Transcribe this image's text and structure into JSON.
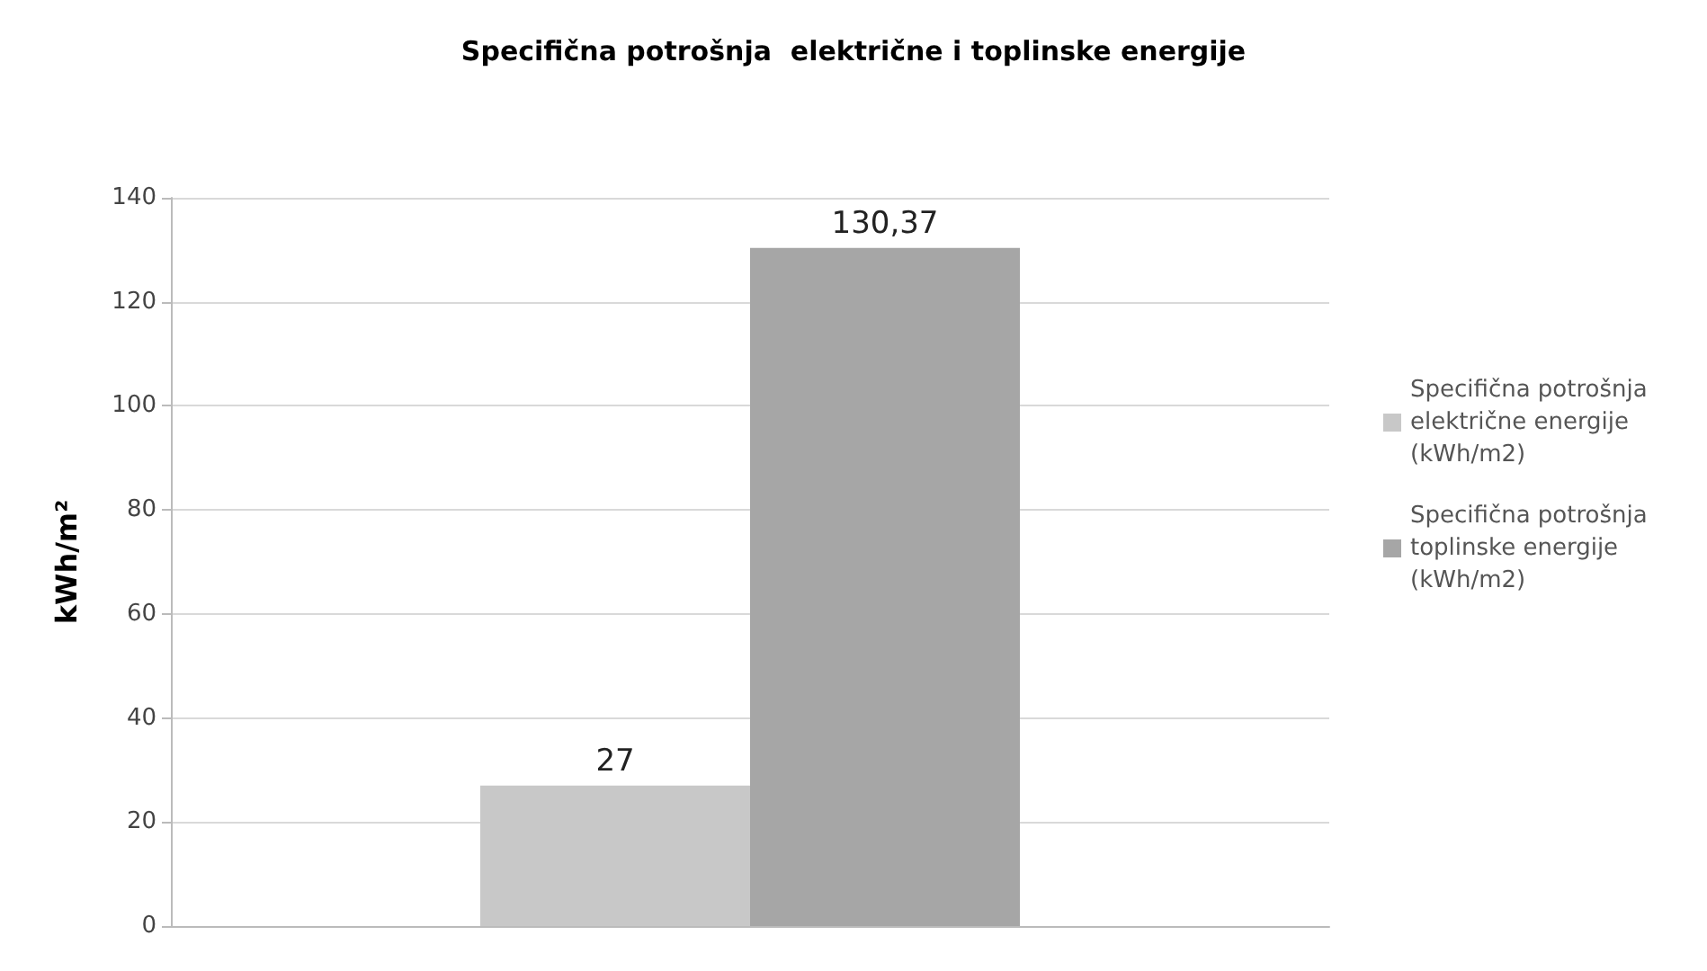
{
  "chart_data": {
    "type": "bar",
    "title": "Specifična potrošnja  električne i toplinske energije",
    "ylabel": "kWh/m²",
    "categories": [
      null
    ],
    "series": [
      {
        "name": "Specifična potrošnja električne energije (kWh/m2)",
        "color": "#c8c8c8",
        "values": [
          27
        ],
        "value_labels": [
          "27"
        ]
      },
      {
        "name": "Specifična potrošnja toplinske energije (kWh/m2)",
        "color": "#a6a6a6",
        "values": [
          130.37
        ],
        "value_labels": [
          "130,37"
        ]
      }
    ],
    "ylim": [
      0,
      140
    ],
    "yticks": [
      0,
      20,
      40,
      60,
      80,
      100,
      120,
      140
    ],
    "grid": "y",
    "legend": "right"
  }
}
